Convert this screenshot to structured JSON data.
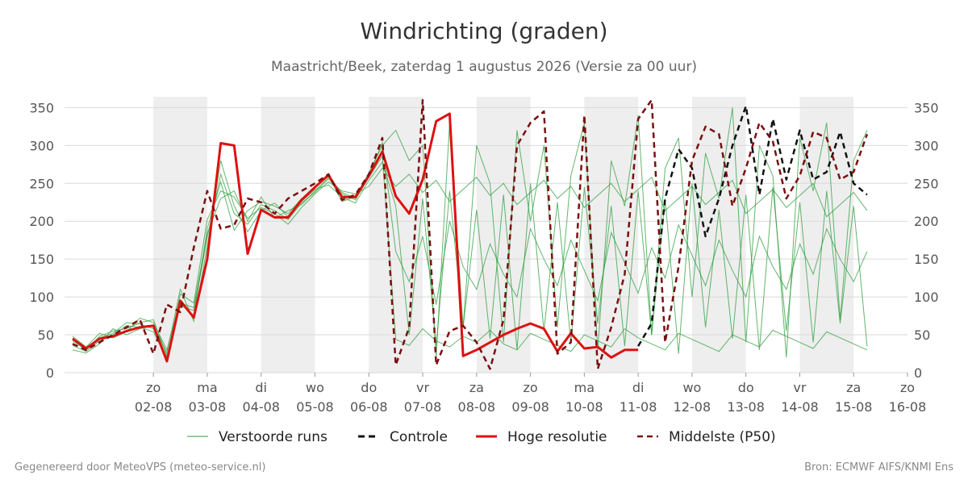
{
  "chart_data": {
    "type": "line",
    "title": "Windrichting (graden)",
    "subtitle": "Maastricht/Beek, zaterdag  1 augustus 2026 (Versie za 00 uur)",
    "ylim": [
      0,
      360
    ],
    "yticks": [
      0,
      50,
      100,
      150,
      200,
      250,
      300,
      350
    ],
    "xlim": [
      -0.75,
      14.0
    ],
    "x_unit": "days after 01-08 00:00 (time)",
    "x_ticks": [
      {
        "day": "zo",
        "date": "02-08",
        "x": 0.75
      },
      {
        "day": "ma",
        "date": "03-08",
        "x": 1.75
      },
      {
        "day": "di",
        "date": "04-08",
        "x": 2.75
      },
      {
        "day": "wo",
        "date": "05-08",
        "x": 3.75
      },
      {
        "day": "do",
        "date": "06-08",
        "x": 4.75
      },
      {
        "day": "vr",
        "date": "07-08",
        "x": 5.75
      },
      {
        "day": "za",
        "date": "08-08",
        "x": 6.75
      },
      {
        "day": "zo",
        "date": "09-08",
        "x": 7.75
      },
      {
        "day": "ma",
        "date": "10-08",
        "x": 8.75
      },
      {
        "day": "di",
        "date": "11-08",
        "x": 9.75
      },
      {
        "day": "wo",
        "date": "12-08",
        "x": 10.75
      },
      {
        "day": "do",
        "date": "13-08",
        "x": 11.75
      },
      {
        "day": "vr",
        "date": "14-08",
        "x": 12.75
      },
      {
        "day": "za",
        "date": "15-08",
        "x": 13.75
      },
      {
        "day": "zo",
        "date": "16-08",
        "x": 14.75
      }
    ],
    "weekend_bands": [
      [
        0.75,
        1.75
      ],
      [
        2.75,
        3.75
      ],
      [
        4.75,
        5.75
      ],
      [
        6.75,
        7.75
      ],
      [
        8.75,
        9.75
      ],
      [
        10.75,
        11.75
      ],
      [
        12.75,
        13.75
      ]
    ],
    "grid": true,
    "legend_position": "bottom",
    "series": [
      {
        "name": "Hoge resolutie",
        "color": "#dd1111",
        "style": "solid",
        "x": [
          -0.75,
          -0.5,
          -0.25,
          0.0,
          0.25,
          0.5,
          0.75,
          1.0,
          1.25,
          1.5,
          1.75,
          2.0,
          2.25,
          2.5,
          2.75,
          3.0,
          3.25,
          3.5,
          3.75,
          4.0,
          4.25,
          4.5,
          4.75,
          5.0,
          5.25,
          5.5,
          5.75,
          6.0,
          6.25,
          6.5,
          6.75,
          7.0,
          7.25,
          7.5,
          7.75,
          8.0,
          8.25,
          8.5,
          8.75,
          9.0,
          9.25,
          9.5,
          9.75
        ],
        "y": [
          45,
          32,
          45,
          48,
          55,
          60,
          62,
          15,
          95,
          73,
          150,
          303,
          300,
          157,
          215,
          205,
          205,
          228,
          245,
          261,
          232,
          232,
          260,
          292,
          233,
          210,
          255,
          332,
          342,
          22,
          30,
          40,
          50,
          58,
          65,
          58,
          28,
          52,
          32,
          34,
          20,
          30,
          30
        ]
      },
      {
        "name": "Controle",
        "color": "#111111",
        "style": "dashed",
        "x": [
          9.75,
          10.0,
          10.25,
          10.5,
          10.75,
          11.0,
          11.25,
          11.5,
          11.75,
          12.0,
          12.25,
          12.5,
          12.75,
          13.0,
          13.25,
          13.5,
          13.75,
          14.0
        ],
        "y": [
          35,
          65,
          230,
          295,
          270,
          180,
          230,
          300,
          352,
          235,
          335,
          255,
          320,
          255,
          265,
          318,
          250,
          235
        ]
      },
      {
        "name": "Middelste (P50)",
        "color": "#7a1010",
        "style": "dashed",
        "x": [
          -0.75,
          -0.5,
          -0.25,
          0.0,
          0.25,
          0.5,
          0.75,
          1.0,
          1.25,
          1.5,
          1.75,
          2.0,
          2.25,
          2.5,
          2.75,
          3.0,
          3.25,
          3.5,
          3.75,
          4.0,
          4.25,
          4.5,
          4.75,
          5.0,
          5.25,
          5.5,
          5.75,
          6.0,
          6.25,
          6.5,
          6.75,
          7.0,
          7.25,
          7.5,
          7.75,
          8.0,
          8.25,
          8.5,
          8.75,
          9.0,
          9.25,
          9.5,
          9.75,
          10.0,
          10.25,
          10.5,
          10.75,
          11.0,
          11.25,
          11.5,
          11.75,
          12.0,
          12.25,
          12.5,
          12.75,
          13.0,
          13.25,
          13.5,
          13.75,
          14.0
        ],
        "y": [
          38,
          30,
          40,
          50,
          60,
          70,
          25,
          90,
          80,
          165,
          240,
          190,
          195,
          230,
          225,
          210,
          230,
          240,
          250,
          262,
          228,
          235,
          262,
          310,
          10,
          60,
          360,
          10,
          55,
          62,
          40,
          5,
          70,
          300,
          330,
          345,
          25,
          40,
          340,
          5,
          60,
          130,
          335,
          360,
          40,
          140,
          280,
          325,
          315,
          220,
          270,
          330,
          305,
          230,
          260,
          318,
          310,
          255,
          265,
          315
        ]
      }
    ],
    "ensemble": {
      "name": "Verstoorde runs",
      "color": "#2e9e3e",
      "style": "solid",
      "x_step": 0.25,
      "x_start": -0.75,
      "members": [
        [
          42,
          30,
          48,
          55,
          58,
          66,
          70,
          22,
          88,
          82,
          178,
          262,
          210,
          196,
          222,
          214,
          202,
          224,
          238,
          256,
          236,
          228,
          258,
          286,
          44,
          36,
          58,
          42,
          34,
          48,
          40,
          56,
          38,
          30,
          52,
          44,
          36,
          28,
          50,
          42,
          34,
          58,
          46,
          38,
          30,
          52,
          44,
          36,
          28,
          50,
          42,
          34,
          56,
          48,
          40,
          32,
          54,
          46,
          38,
          30
        ],
        [
          36,
          28,
          42,
          50,
          62,
          60,
          54,
          18,
          104,
          92,
          202,
          240,
          232,
          204,
          218,
          210,
          196,
          218,
          236,
          252,
          240,
          236,
          246,
          270,
          246,
          262,
          238,
          254,
          226,
          242,
          258,
          234,
          250,
          222,
          238,
          254,
          230,
          246,
          218,
          234,
          250,
          226,
          242,
          258,
          214,
          230,
          246,
          222,
          238,
          254,
          210,
          226,
          242,
          218,
          234,
          250,
          206,
          222,
          238,
          214
        ],
        [
          48,
          34,
          52,
          46,
          54,
          72,
          66,
          30,
          96,
          74,
          190,
          252,
          188,
          214,
          226,
          220,
          210,
          230,
          244,
          260,
          226,
          232,
          264,
          300,
          320,
          280,
          300,
          20,
          330,
          60,
          300,
          250,
          40,
          320,
          200,
          300,
          60,
          260,
          330,
          30,
          280,
          220,
          340,
          50,
          270,
          310,
          100,
          290,
          230,
          350,
          40,
          300,
          260,
          20,
          310,
          240,
          330,
          70,
          280,
          320
        ],
        [
          30,
          26,
          38,
          58,
          50,
          58,
          62,
          26,
          110,
          68,
          166,
          280,
          220,
          186,
          214,
          224,
          206,
          226,
          242,
          248,
          232,
          224,
          254,
          278,
          220,
          50,
          230,
          35,
          240,
          60,
          215,
          45,
          235,
          30,
          250,
          55,
          225,
          40,
          245,
          65,
          220,
          35,
          240,
          50,
          230,
          25,
          250,
          60,
          215,
          45,
          235,
          30,
          245,
          55,
          225,
          40,
          240,
          65,
          220,
          35
        ],
        [
          44,
          32,
          46,
          52,
          66,
          64,
          58,
          20,
          92,
          86,
          184,
          230,
          240,
          200,
          232,
          204,
          214,
          222,
          240,
          258,
          238,
          230,
          260,
          304,
          160,
          120,
          180,
          90,
          200,
          140,
          110,
          170,
          130,
          100,
          190,
          150,
          115,
          175,
          135,
          95,
          185,
          145,
          105,
          165,
          125,
          195,
          155,
          115,
          175,
          135,
          100,
          180,
          140,
          110,
          170,
          130,
          190,
          150,
          120,
          160
        ]
      ]
    }
  },
  "legend": {
    "items": [
      "Verstoorde runs",
      "Controle",
      "Hoge resolutie",
      "Middelste (P50)"
    ]
  },
  "footer": {
    "left": "Gegenereerd door MeteoVPS (meteo-service.nl)",
    "right": "Bron: ECMWF AIFS/KNMI Ens"
  }
}
